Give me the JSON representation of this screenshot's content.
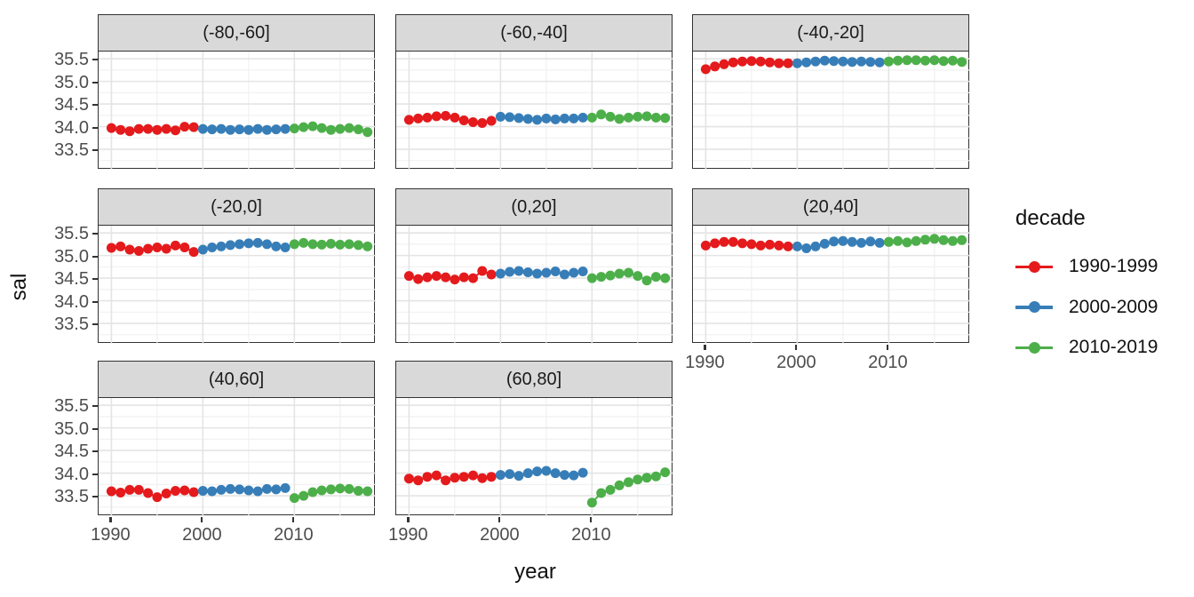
{
  "figure": {
    "xlabel": "year",
    "ylabel": "sal"
  },
  "legend": {
    "title": "decade",
    "entries": [
      {
        "label": "1990-1999",
        "color": "#E41A1C",
        "start_year": 1990
      },
      {
        "label": "2000-2009",
        "color": "#377EB8",
        "start_year": 2000
      },
      {
        "label": "2010-2019",
        "color": "#4DAF4A",
        "start_year": 2010
      }
    ]
  },
  "style": {
    "strip_bg": "#D9D9D9",
    "panel_border": "#333333",
    "grid_major": "#E4E4E4",
    "grid_minor": "#F1F1F1",
    "tick_label_color": "#4D4D4D",
    "point_radius": 5.5
  },
  "chart_data": {
    "type": "scatter",
    "title": "",
    "xlabel": "year",
    "ylabel": "sal",
    "facet_variable": "latitude band",
    "color_variable": "decade",
    "legend_position": "right",
    "grid": true,
    "x_domain": [
      1988.6,
      2018.9
    ],
    "y_domain": [
      33.05,
      35.66
    ],
    "x_ticks": [
      {
        "label": "1990",
        "value": 1990
      },
      {
        "label": "2000",
        "value": 2000
      },
      {
        "label": "2010",
        "value": 2010
      }
    ],
    "y_ticks": [
      {
        "label": "35.5",
        "value": 35.5
      },
      {
        "label": "35.0",
        "value": 35.0
      },
      {
        "label": "34.5",
        "value": 34.5
      },
      {
        "label": "34.0",
        "value": 34.0
      },
      {
        "label": "33.5",
        "value": 33.5
      }
    ],
    "x_minor": [
      1995,
      2005,
      2015
    ],
    "y_minor": [
      33.25,
      33.75,
      34.25,
      34.75,
      35.25
    ],
    "years": [
      1990,
      1991,
      1992,
      1993,
      1994,
      1995,
      1996,
      1997,
      1998,
      1999,
      2000,
      2001,
      2002,
      2003,
      2004,
      2005,
      2006,
      2007,
      2008,
      2009,
      2010,
      2011,
      2012,
      2013,
      2014,
      2015,
      2016,
      2017,
      2018
    ],
    "facets": [
      {
        "label": "(-80,-60]",
        "sal": [
          33.97,
          33.93,
          33.9,
          33.95,
          33.95,
          33.93,
          33.95,
          33.92,
          34.0,
          33.99,
          33.95,
          33.94,
          33.95,
          33.93,
          33.94,
          33.93,
          33.95,
          33.93,
          33.94,
          33.95,
          33.96,
          33.99,
          34.01,
          33.97,
          33.93,
          33.95,
          33.97,
          33.94,
          33.88
        ]
      },
      {
        "label": "(-60,-40]",
        "sal": [
          34.15,
          34.18,
          34.2,
          34.23,
          34.24,
          34.2,
          34.14,
          34.1,
          34.08,
          34.13,
          34.22,
          34.21,
          34.19,
          34.17,
          34.15,
          34.18,
          34.16,
          34.18,
          34.18,
          34.2,
          34.2,
          34.27,
          34.22,
          34.17,
          34.2,
          34.22,
          34.23,
          34.2,
          34.19
        ]
      },
      {
        "label": "(-40,-20]",
        "sal": [
          35.27,
          35.33,
          35.38,
          35.42,
          35.44,
          35.45,
          35.44,
          35.42,
          35.4,
          35.4,
          35.4,
          35.42,
          35.44,
          35.46,
          35.45,
          35.44,
          35.43,
          35.44,
          35.43,
          35.42,
          35.44,
          35.46,
          35.47,
          35.47,
          35.46,
          35.47,
          35.45,
          35.46,
          35.43
        ]
      },
      {
        "label": "(-20,0]",
        "sal": [
          35.17,
          35.2,
          35.13,
          35.1,
          35.15,
          35.18,
          35.15,
          35.22,
          35.18,
          35.08,
          35.13,
          35.18,
          35.2,
          35.23,
          35.25,
          35.27,
          35.28,
          35.25,
          35.2,
          35.18,
          35.25,
          35.28,
          35.25,
          35.24,
          35.26,
          35.24,
          35.25,
          35.23,
          35.2
        ]
      },
      {
        "label": "(0,20]",
        "sal": [
          34.55,
          34.48,
          34.52,
          34.55,
          34.52,
          34.47,
          34.52,
          34.5,
          34.66,
          34.58,
          34.6,
          34.64,
          34.66,
          34.63,
          34.6,
          34.62,
          34.65,
          34.58,
          34.62,
          34.65,
          34.5,
          34.53,
          34.56,
          34.6,
          34.62,
          34.55,
          34.45,
          34.53,
          34.5
        ]
      },
      {
        "label": "(20,40]",
        "sal": [
          35.22,
          35.27,
          35.3,
          35.3,
          35.27,
          35.25,
          35.22,
          35.24,
          35.22,
          35.2,
          35.2,
          35.16,
          35.2,
          35.26,
          35.31,
          35.32,
          35.3,
          35.28,
          35.31,
          35.28,
          35.3,
          35.32,
          35.29,
          35.32,
          35.35,
          35.37,
          35.34,
          35.32,
          35.34
        ]
      },
      {
        "label": "(40,60]",
        "sal": [
          33.6,
          33.57,
          33.63,
          33.63,
          33.56,
          33.47,
          33.55,
          33.61,
          33.62,
          33.58,
          33.61,
          33.6,
          33.63,
          33.65,
          33.64,
          33.62,
          33.6,
          33.65,
          33.64,
          33.67,
          33.45,
          33.5,
          33.58,
          33.62,
          33.64,
          33.66,
          33.65,
          33.61,
          33.6
        ]
      },
      {
        "label": "(60,80]",
        "sal": [
          33.88,
          33.84,
          33.92,
          33.95,
          33.84,
          33.9,
          33.92,
          33.95,
          33.89,
          33.92,
          33.96,
          33.98,
          33.94,
          34.0,
          34.04,
          34.05,
          34.0,
          33.96,
          33.95,
          34.01,
          33.35,
          33.56,
          33.63,
          33.73,
          33.8,
          33.86,
          33.9,
          33.93,
          34.02
        ]
      }
    ]
  }
}
